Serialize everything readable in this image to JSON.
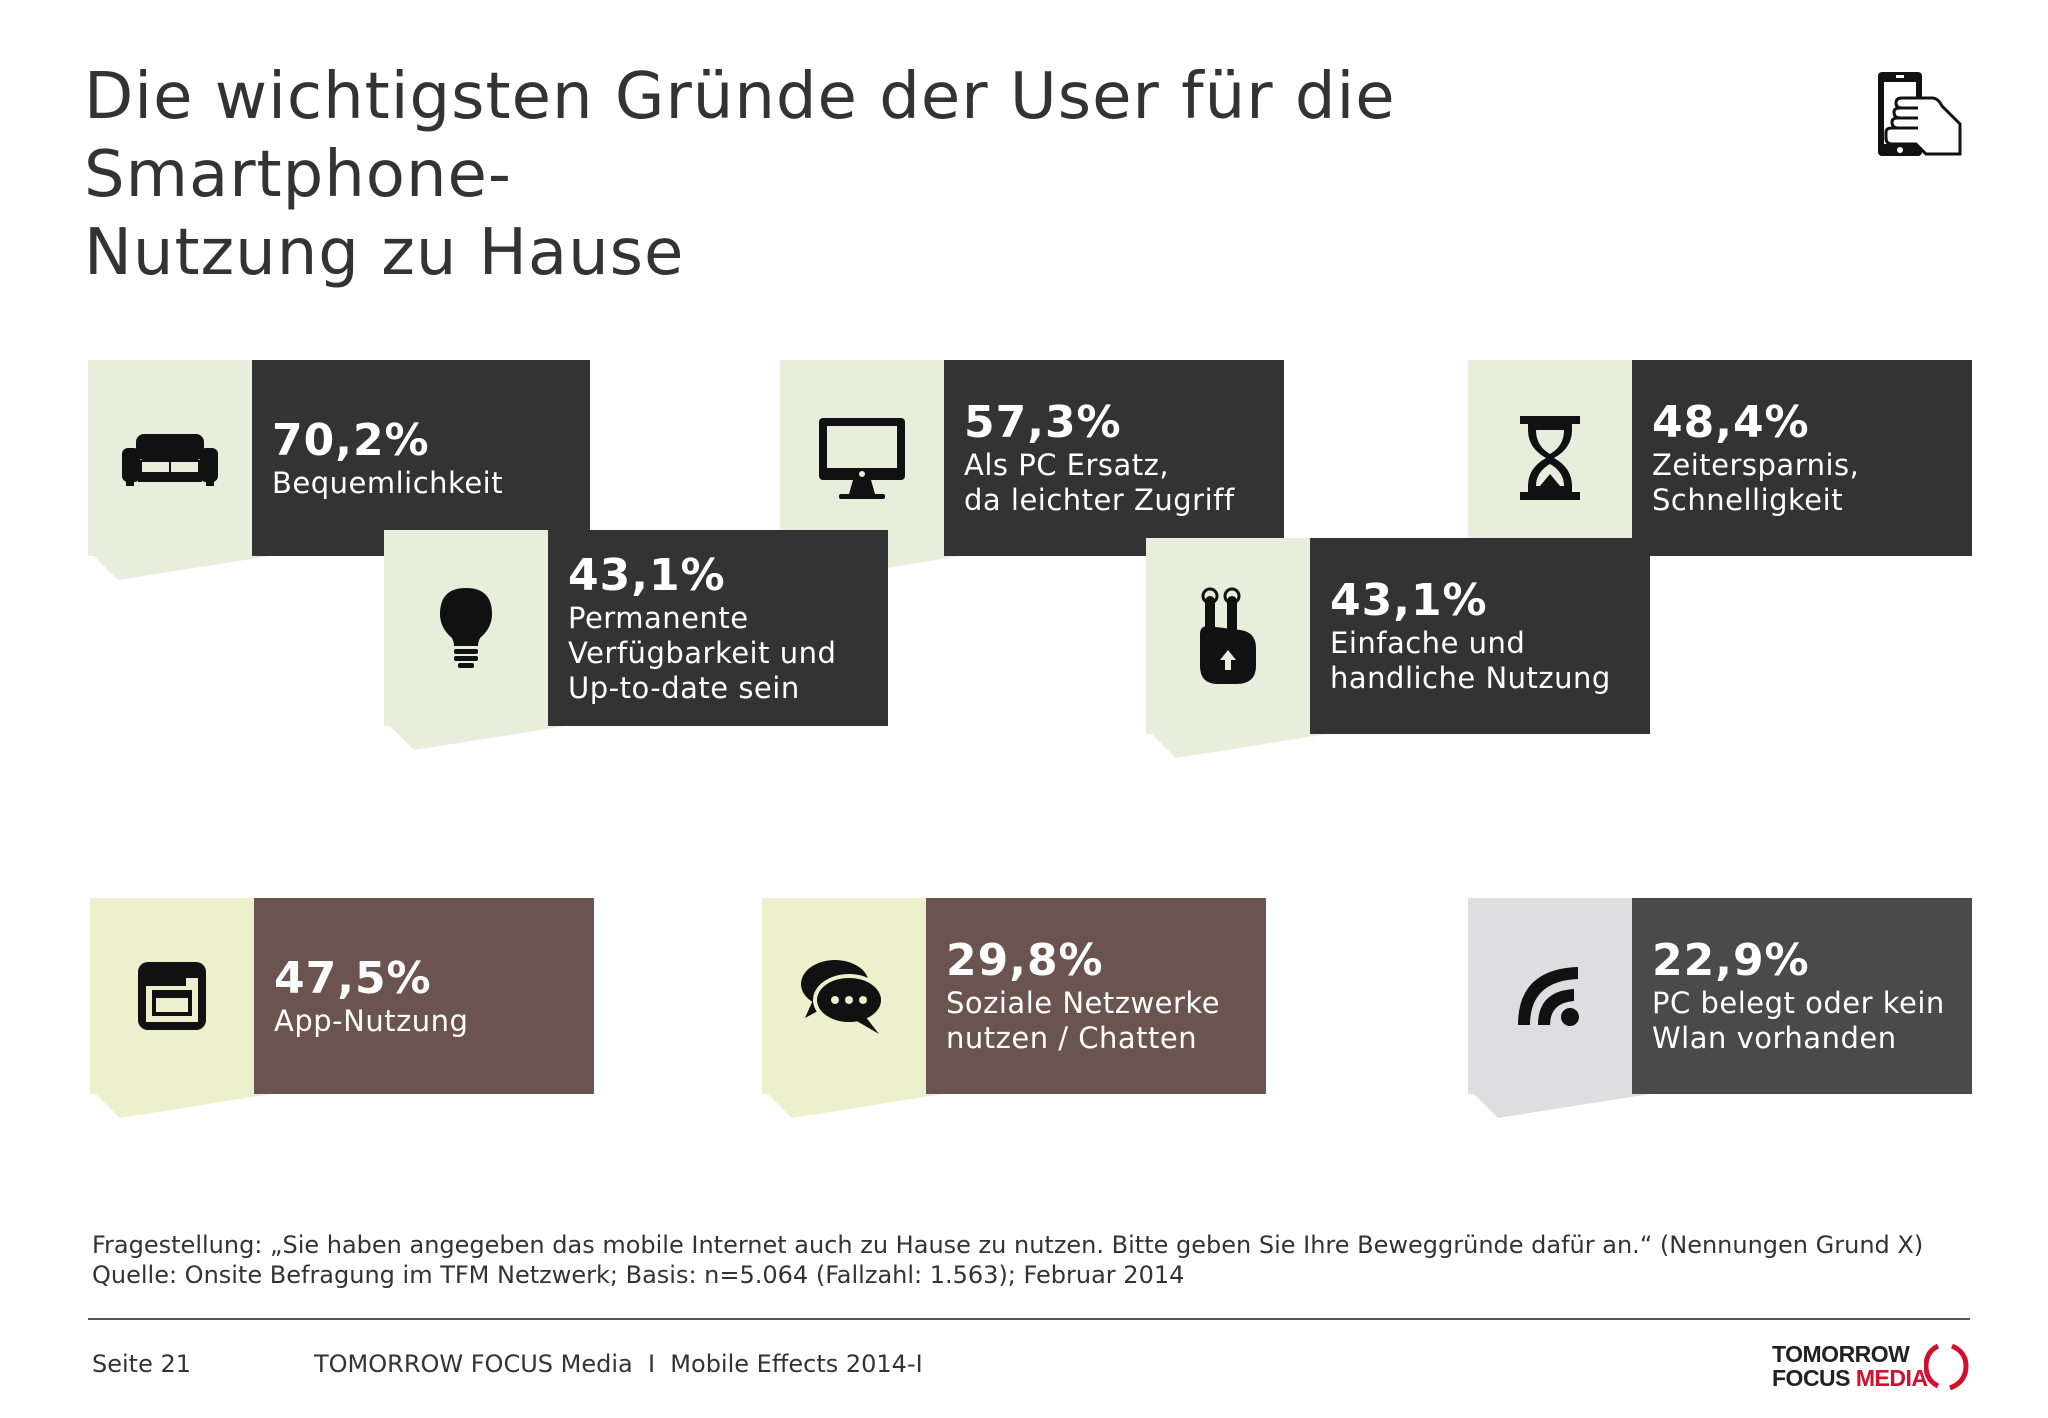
{
  "title": {
    "line1": "Die wichtigsten Gründe der User für die Smartphone-",
    "line2": "Nutzung zu Hause"
  },
  "colors": {
    "dark_box": "#333333",
    "brown_box": "#6b5450",
    "grey_box": "#4a4a4a",
    "green_tint": "#e8eddc",
    "yellow_tint": "#edf0cc",
    "grey_tint": "#dedee0",
    "brand_red": "#d0112b"
  },
  "cards": [
    {
      "percent": "70,2%",
      "label": "Bequemlichkeit",
      "icon": "sofa-icon"
    },
    {
      "percent": "43,1%",
      "label": "Permanente\nVerfügbarkeit und\nUp-to-date sein",
      "icon": "lightbulb-icon"
    },
    {
      "percent": "57,3%",
      "label": "Als PC Ersatz,\nda leichter Zugriff",
      "icon": "monitor-icon"
    },
    {
      "percent": "43,1%",
      "label": "Einfache und\nhandliche Nutzung",
      "icon": "two-finger-hand-icon"
    },
    {
      "percent": "48,4%",
      "label": "Zeitersparnis,\nSchnelligkeit",
      "icon": "hourglass-icon"
    },
    {
      "percent": "47,5%",
      "label": "App-Nutzung",
      "icon": "app-window-icon"
    },
    {
      "percent": "29,8%",
      "label": "Soziale Netzwerke\nnutzen / Chatten",
      "icon": "chat-bubbles-icon"
    },
    {
      "percent": "22,9%",
      "label": "PC belegt oder kein\nWlan vorhanden",
      "icon": "wifi-icon"
    }
  ],
  "footnote": {
    "question": "Fragestellung: „Sie haben angegeben das mobile Internet auch zu Hause zu nutzen. Bitte geben Sie Ihre Beweggründe dafür an.“ (Nennungen Grund X)",
    "source": "Quelle: Onsite Befragung im TFM Netzwerk; Basis: n=5.064 (Fallzahl: 1.563); Februar 2014"
  },
  "footer": {
    "page": "Seite 21",
    "publication": "TOMORROW FOCUS Media  I  Mobile Effects 2014-I"
  },
  "logo": {
    "line1": "TOMORROW",
    "line2a": "FOCUS",
    "line2b": "MEDIA"
  }
}
